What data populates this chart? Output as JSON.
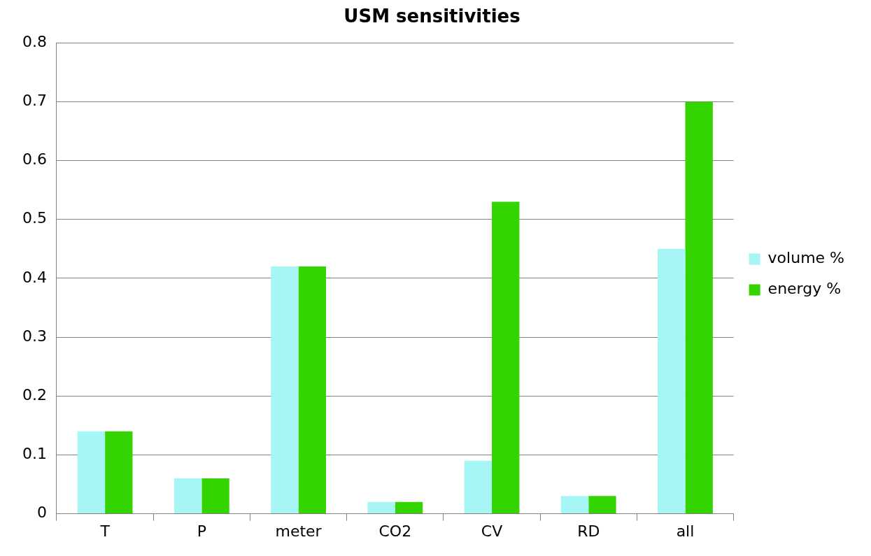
{
  "chart_data": {
    "type": "bar",
    "title": "USM sensitivities",
    "categories": [
      "T",
      "P",
      "meter",
      "CO2",
      "CV",
      "RD",
      "all"
    ],
    "series": [
      {
        "name": "volume %",
        "color": "#a6f6f6",
        "values": [
          0.14,
          0.06,
          0.42,
          0.02,
          0.09,
          0.03,
          0.45
        ]
      },
      {
        "name": "energy %",
        "color": "#33d400",
        "values": [
          0.14,
          0.06,
          0.42,
          0.02,
          0.53,
          0.03,
          0.7
        ]
      }
    ],
    "ylim": [
      0,
      0.8
    ],
    "yticks": [
      0,
      0.1,
      0.2,
      0.3,
      0.4,
      0.5,
      0.6,
      0.7,
      0.8
    ],
    "grid": "y",
    "legend": "right"
  }
}
